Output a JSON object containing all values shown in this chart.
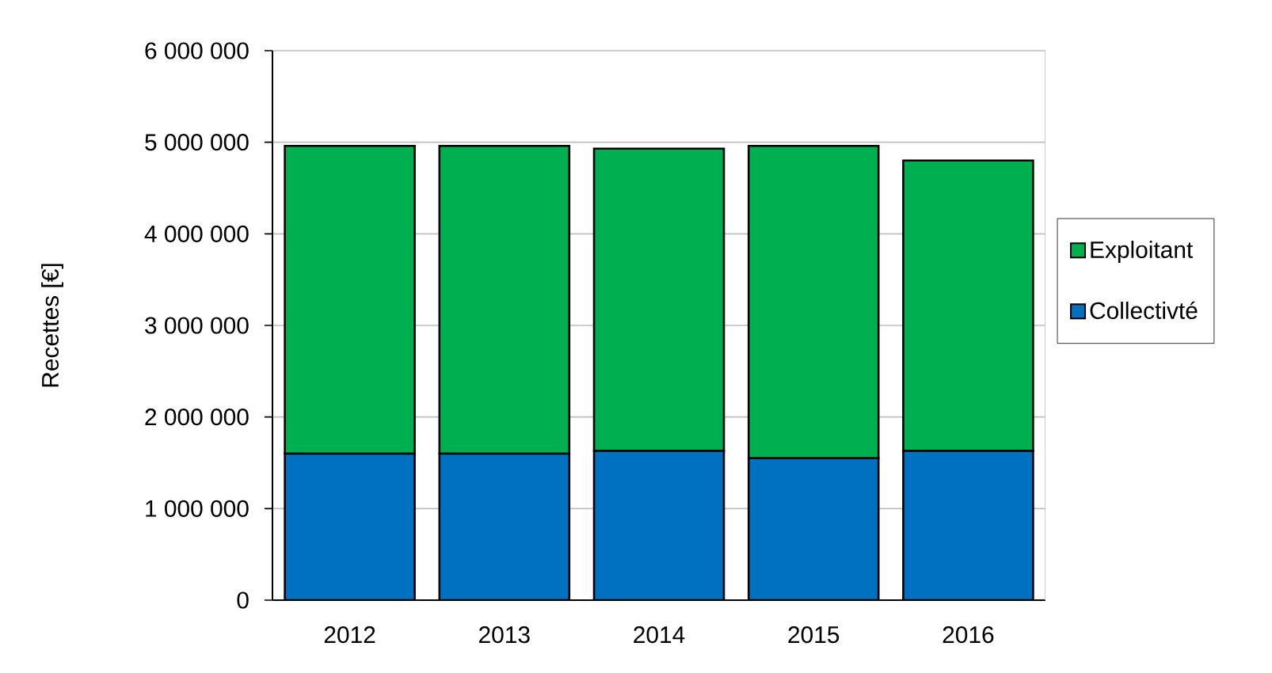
{
  "chart_data": {
    "type": "bar",
    "stacked": true,
    "ylabel": "Recettes [€]",
    "categories": [
      "2012",
      "2013",
      "2014",
      "2015",
      "2016"
    ],
    "series": [
      {
        "name": "Collectivté",
        "color": "#0070c0",
        "values": [
          1600000,
          1600000,
          1630000,
          1550000,
          1630000
        ]
      },
      {
        "name": "Exploitant",
        "color": "#00b050",
        "values": [
          3360000,
          3360000,
          3300000,
          3410000,
          3170000
        ]
      }
    ],
    "ylim": [
      0,
      6000000
    ],
    "yticks": [
      0,
      {
        "value": 1000000,
        "label": "1 000 000"
      },
      {
        "value": 2000000,
        "label": "2 000 000"
      },
      {
        "value": 3000000,
        "label": "3 000 000"
      },
      {
        "value": 4000000,
        "label": "4 000 000"
      },
      {
        "value": 5000000,
        "label": "5 000 000"
      },
      {
        "value": 6000000,
        "label": "6 000 000"
      }
    ],
    "grid": "y",
    "legend": "right"
  }
}
